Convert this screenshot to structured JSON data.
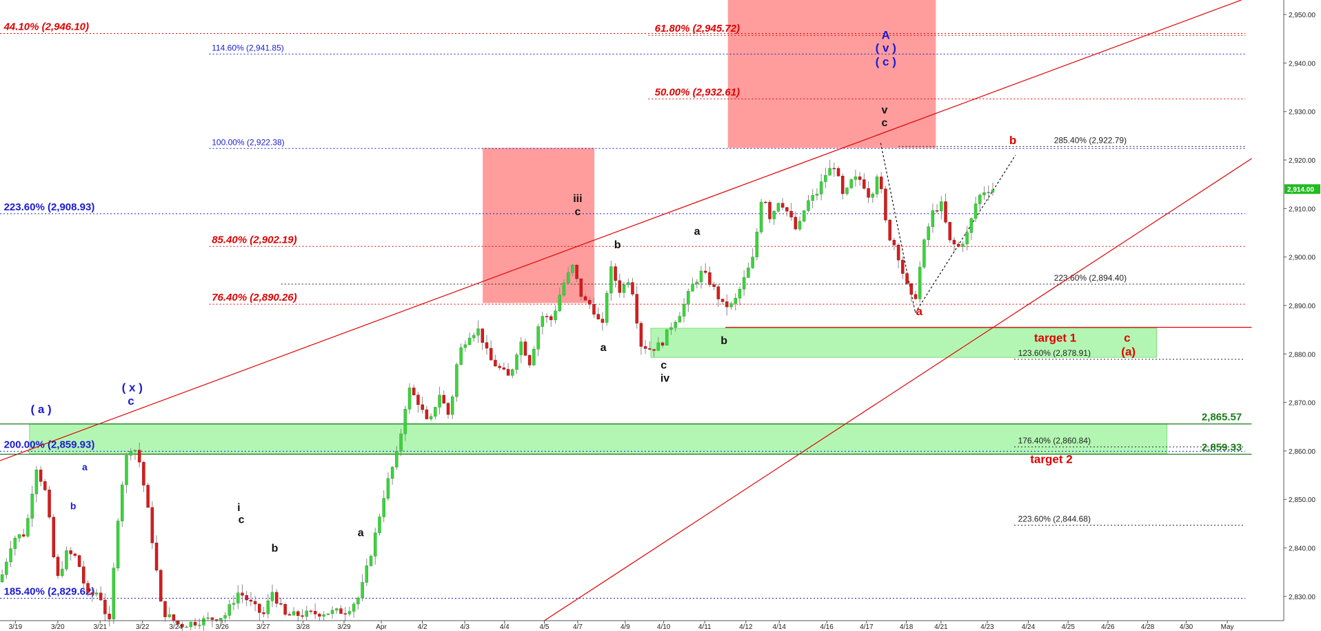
{
  "chart_data": {
    "type": "candlestick",
    "title": "",
    "xlabel": "",
    "ylabel": "",
    "ylim": [
      2825,
      2953
    ],
    "grid": false,
    "current_price_label": "2,914.00",
    "y_ticks": [
      {
        "v": 2830,
        "label": "2,830.00"
      },
      {
        "v": 2840,
        "label": "2,840.00"
      },
      {
        "v": 2850,
        "label": "2,850.00"
      },
      {
        "v": 2860,
        "label": "2,860.00"
      },
      {
        "v": 2870,
        "label": "2,870.00"
      },
      {
        "v": 2880,
        "label": "2,880.00"
      },
      {
        "v": 2890,
        "label": "2,890.00"
      },
      {
        "v": 2900,
        "label": "2,900.00"
      },
      {
        "v": 2910,
        "label": "2,910.00"
      },
      {
        "v": 2920,
        "label": "2,920.00"
      },
      {
        "v": 2930,
        "label": "2,930.00"
      },
      {
        "v": 2940,
        "label": "2,940.00"
      },
      {
        "v": 2950,
        "label": "2,950.00"
      }
    ],
    "x_ticks": [
      {
        "label": "3/19",
        "pos": 0.012
      },
      {
        "label": "3/20",
        "pos": 0.045
      },
      {
        "label": "3/21",
        "pos": 0.078
      },
      {
        "label": "3/22",
        "pos": 0.111
      },
      {
        "label": "3/24",
        "pos": 0.137
      },
      {
        "label": "3/26",
        "pos": 0.173
      },
      {
        "label": "3/27",
        "pos": 0.205
      },
      {
        "label": "3/28",
        "pos": 0.236
      },
      {
        "label": "3/29",
        "pos": 0.268
      },
      {
        "label": "Apr",
        "pos": 0.297
      },
      {
        "label": "4/2",
        "pos": 0.329
      },
      {
        "label": "4/3",
        "pos": 0.362
      },
      {
        "label": "4/4",
        "pos": 0.393
      },
      {
        "label": "4/5",
        "pos": 0.424
      },
      {
        "label": "4/7",
        "pos": 0.45
      },
      {
        "label": "4/9",
        "pos": 0.487
      },
      {
        "label": "4/10",
        "pos": 0.517
      },
      {
        "label": "4/11",
        "pos": 0.549
      },
      {
        "label": "4/12",
        "pos": 0.581
      },
      {
        "label": "4/14",
        "pos": 0.607
      },
      {
        "label": "4/16",
        "pos": 0.644
      },
      {
        "label": "4/17",
        "pos": 0.675
      },
      {
        "label": "4/18",
        "pos": 0.706
      },
      {
        "label": "4/21",
        "pos": 0.733
      },
      {
        "label": "4/23",
        "pos": 0.769
      },
      {
        "label": "4/24",
        "pos": 0.801
      },
      {
        "label": "4/25",
        "pos": 0.832
      },
      {
        "label": "4/26",
        "pos": 0.863
      },
      {
        "label": "4/28",
        "pos": 0.894
      },
      {
        "label": "4/30",
        "pos": 0.924
      },
      {
        "label": "May",
        "pos": 0.956
      }
    ],
    "path": [
      [
        0.0,
        2833
      ],
      [
        0.01,
        2842
      ],
      [
        0.02,
        2843
      ],
      [
        0.028,
        2857
      ],
      [
        0.036,
        2851
      ],
      [
        0.044,
        2833
      ],
      [
        0.052,
        2839
      ],
      [
        0.06,
        2838
      ],
      [
        0.068,
        2830
      ],
      [
        0.077,
        2831
      ],
      [
        0.085,
        2824
      ],
      [
        0.093,
        2850
      ],
      [
        0.1,
        2861
      ],
      [
        0.107,
        2860
      ],
      [
        0.114,
        2850
      ],
      [
        0.12,
        2839
      ],
      [
        0.126,
        2827
      ],
      [
        0.14,
        2824
      ],
      [
        0.175,
        2826
      ],
      [
        0.186,
        2831
      ],
      [
        0.205,
        2826
      ],
      [
        0.212,
        2831
      ],
      [
        0.222,
        2826
      ],
      [
        0.27,
        2827
      ],
      [
        0.28,
        2830
      ],
      [
        0.29,
        2840
      ],
      [
        0.3,
        2852
      ],
      [
        0.31,
        2860
      ],
      [
        0.318,
        2873
      ],
      [
        0.326,
        2870
      ],
      [
        0.334,
        2865
      ],
      [
        0.342,
        2872
      ],
      [
        0.35,
        2867
      ],
      [
        0.357,
        2880
      ],
      [
        0.365,
        2884
      ],
      [
        0.373,
        2885
      ],
      [
        0.381,
        2879
      ],
      [
        0.389,
        2877
      ],
      [
        0.397,
        2875
      ],
      [
        0.405,
        2883
      ],
      [
        0.413,
        2878
      ],
      [
        0.421,
        2888
      ],
      [
        0.43,
        2887
      ],
      [
        0.438,
        2894
      ],
      [
        0.446,
        2898
      ],
      [
        0.454,
        2891
      ],
      [
        0.461,
        2890
      ],
      [
        0.469,
        2885
      ],
      [
        0.475,
        2898
      ],
      [
        0.483,
        2893
      ],
      [
        0.491,
        2896
      ],
      [
        0.499,
        2882
      ],
      [
        0.507,
        2881
      ],
      [
        0.515,
        2882
      ],
      [
        0.523,
        2886
      ],
      [
        0.531,
        2889
      ],
      [
        0.539,
        2894
      ],
      [
        0.547,
        2897
      ],
      [
        0.555,
        2894
      ],
      [
        0.563,
        2890
      ],
      [
        0.571,
        2890
      ],
      [
        0.579,
        2895
      ],
      [
        0.587,
        2900
      ],
      [
        0.594,
        2914
      ],
      [
        0.6,
        2908
      ],
      [
        0.607,
        2912
      ],
      [
        0.614,
        2909
      ],
      [
        0.621,
        2905
      ],
      [
        0.628,
        2911
      ],
      [
        0.636,
        2913
      ],
      [
        0.643,
        2917
      ],
      [
        0.65,
        2919
      ],
      [
        0.657,
        2912
      ],
      [
        0.664,
        2916
      ],
      [
        0.671,
        2916
      ],
      [
        0.678,
        2912
      ],
      [
        0.684,
        2918
      ],
      [
        0.691,
        2905
      ],
      [
        0.698,
        2902
      ],
      [
        0.705,
        2895
      ],
      [
        0.712,
        2890
      ],
      [
        0.719,
        2902
      ],
      [
        0.726,
        2909
      ],
      [
        0.733,
        2911
      ],
      [
        0.74,
        2903
      ],
      [
        0.747,
        2902
      ],
      [
        0.754,
        2905
      ],
      [
        0.761,
        2912
      ],
      [
        0.768,
        2914
      ],
      [
        0.775,
        2914
      ]
    ],
    "fib_levels": [
      {
        "pct": "44.10%",
        "value": 2946.1,
        "label": "44.10% (2,946.10)",
        "color": "#e00000",
        "style": "big",
        "x1": 0.0,
        "x2": 0.97,
        "lx": 0.003
      },
      {
        "pct": "61.80%",
        "value": 2945.72,
        "label": "61.80% (2,945.72)",
        "color": "#e00000",
        "style": "big",
        "x1": 0.505,
        "x2": 0.97,
        "lx": 0.51
      },
      {
        "pct": "114.60%",
        "value": 2941.85,
        "label": "114.60% (2,941.85)",
        "color": "#1a1ad6",
        "style": "small",
        "x1": 0.163,
        "x2": 0.97,
        "lx": 0.165
      },
      {
        "pct": "50.00%",
        "value": 2932.61,
        "label": "50.00% (2,932.61)",
        "color": "#e00000",
        "style": "big",
        "x1": 0.505,
        "x2": 0.97,
        "lx": 0.51
      },
      {
        "pct": "100.00%",
        "value": 2922.38,
        "label": "100.00% (2,922.38)",
        "color": "#1a1ad6",
        "style": "small",
        "x1": 0.163,
        "x2": 0.97,
        "lx": 0.165
      },
      {
        "pct": "285.40%",
        "value": 2922.79,
        "label": "285.40% (2,922.79)",
        "color": "#222222",
        "style": "small",
        "x1": 0.7,
        "x2": 0.97,
        "lx": 0.821
      },
      {
        "pct": "223.60%",
        "value": 2908.93,
        "label": "223.60% (2,908.93)",
        "color": "#1a1ad6",
        "style": "bigplain",
        "x1": 0.0,
        "x2": 0.97,
        "lx": 0.003
      },
      {
        "pct": "85.40%",
        "value": 2902.19,
        "label": "85.40% (2,902.19)",
        "color": "#e00000",
        "style": "big",
        "x1": 0.163,
        "x2": 0.97,
        "lx": 0.165
      },
      {
        "pct": "223.60%",
        "value": 2894.4,
        "label": "223.60% (2,894.40)",
        "color": "#222222",
        "style": "small",
        "x1": 0.219,
        "x2": 0.97,
        "lx": 0.821
      },
      {
        "pct": "76.40%",
        "value": 2890.26,
        "label": "76.40% (2,890.26)",
        "color": "#e00000",
        "style": "big",
        "x1": 0.163,
        "x2": 0.97,
        "lx": 0.165
      },
      {
        "pct": "123.60%",
        "value": 2878.91,
        "label": "123.60% (2,878.91)",
        "color": "#222222",
        "style": "small",
        "x1": 0.79,
        "x2": 0.97,
        "lx": 0.793
      },
      {
        "pct": "176.40%",
        "value": 2860.84,
        "label": "176.40% (2,860.84)",
        "color": "#222222",
        "style": "small",
        "x1": 0.79,
        "x2": 0.97,
        "lx": 0.793
      },
      {
        "pct": "200.00%",
        "value": 2859.93,
        "label": "200.00% (2,859.93)",
        "color": "#1a1ad6",
        "style": "bigplain",
        "x1": 0.0,
        "x2": 0.97,
        "lx": 0.003
      },
      {
        "pct": "223.60%",
        "value": 2844.68,
        "label": "223.60% (2,844.68)",
        "color": "#222222",
        "style": "small",
        "x1": 0.79,
        "x2": 0.97,
        "lx": 0.793
      },
      {
        "pct": "185.40%",
        "value": 2829.62,
        "label": "185.40% (2,829.62)",
        "color": "#1a1ad6",
        "style": "bigplain",
        "x1": 0.0,
        "x2": 0.97,
        "lx": 0.003
      }
    ],
    "zones": [
      {
        "name": "red-zone-1",
        "color": "#ff8c8c",
        "x1": 0.567,
        "x2": 0.729,
        "y1": 2922.5,
        "y2": 2953
      },
      {
        "name": "red-zone-2",
        "color": "#ff8c8c",
        "x1": 0.376,
        "x2": 0.463,
        "y1": 2890.5,
        "y2": 2922.5
      },
      {
        "name": "green-zone-target1",
        "color": "#a6f5a6",
        "x1": 0.507,
        "x2": 0.901,
        "y1": 2879.3,
        "y2": 2885.3
      },
      {
        "name": "green-zone-target2",
        "color": "#a6f5a6",
        "x1": 0.023,
        "x2": 0.909,
        "y1": 2859.4,
        "y2": 2865.6
      }
    ],
    "trendlines": [
      {
        "color": "#e00000",
        "x1": 0.0,
        "y1": 2858.0,
        "x2": 0.967,
        "y2": 2953.0,
        "dash": false
      },
      {
        "color": "#e00000",
        "x1": 0.424,
        "y1": 2825.0,
        "x2": 0.975,
        "y2": 2920.3,
        "dash": false
      },
      {
        "color": "#e00000",
        "x1": 0.565,
        "y1": 2885.5,
        "x2": 0.975,
        "y2": 2885.5,
        "dash": false
      },
      {
        "color": "#1a7a1a",
        "x1": 0.0,
        "y1": 2865.57,
        "x2": 0.975,
        "y2": 2865.57,
        "dash": false
      },
      {
        "color": "#1a7a1a",
        "x1": 0.0,
        "y1": 2859.33,
        "x2": 0.975,
        "y2": 2859.33,
        "dash": false
      },
      {
        "color": "#111111",
        "x1": 0.686,
        "y1": 2923.5,
        "x2": 0.713,
        "y2": 2888.5,
        "dash": true
      },
      {
        "color": "#111111",
        "x1": 0.713,
        "y1": 2888.5,
        "x2": 0.791,
        "y2": 2921.0,
        "dash": true
      }
    ],
    "price_labels": [
      {
        "text": "2,865.57",
        "value": 2865.57,
        "color": "#1a7a1a",
        "lx": 0.936
      },
      {
        "text": "2,859.33",
        "value": 2859.33,
        "color": "#1a7a1a",
        "lx": 0.936
      }
    ],
    "wave_labels": [
      {
        "text": "A",
        "x": 0.69,
        "y": 2945.0,
        "color": "#1a1ad6",
        "size": 17
      },
      {
        "text": "( v )",
        "x": 0.69,
        "y": 2942.3,
        "color": "#1a1ad6",
        "size": 17
      },
      {
        "text": "( c )",
        "x": 0.69,
        "y": 2939.5,
        "color": "#1a1ad6",
        "size": 17
      },
      {
        "text": "v",
        "x": 0.689,
        "y": 2929.6,
        "color": "#111111",
        "size": 16
      },
      {
        "text": "c",
        "x": 0.689,
        "y": 2927.0,
        "color": "#111111",
        "size": 16
      },
      {
        "text": "b",
        "x": 0.789,
        "y": 2923.3,
        "color": "#e00000",
        "size": 17
      },
      {
        "text": "iii",
        "x": 0.45,
        "y": 2911.3,
        "color": "#111111",
        "size": 16
      },
      {
        "text": "c",
        "x": 0.45,
        "y": 2908.6,
        "color": "#111111",
        "size": 16
      },
      {
        "text": "b",
        "x": 0.481,
        "y": 2901.8,
        "color": "#111111",
        "size": 16
      },
      {
        "text": "a",
        "x": 0.543,
        "y": 2904.6,
        "color": "#111111",
        "size": 16
      },
      {
        "text": "a",
        "x": 0.47,
        "y": 2880.6,
        "color": "#111111",
        "size": 16
      },
      {
        "text": "b",
        "x": 0.564,
        "y": 2882.0,
        "color": "#111111",
        "size": 16
      },
      {
        "text": "c",
        "x": 0.517,
        "y": 2877.0,
        "color": "#111111",
        "size": 16
      },
      {
        "text": "iv",
        "x": 0.518,
        "y": 2874.3,
        "color": "#111111",
        "size": 16
      },
      {
        "text": "a",
        "x": 0.716,
        "y": 2888.0,
        "color": "#e00000",
        "size": 17
      },
      {
        "text": "target 1",
        "x": 0.822,
        "y": 2882.5,
        "color": "#e00000",
        "size": 17
      },
      {
        "text": "c",
        "x": 0.878,
        "y": 2882.5,
        "color": "#e00000",
        "size": 17
      },
      {
        "text": "(a)",
        "x": 0.879,
        "y": 2879.7,
        "color": "#e00000",
        "size": 17
      },
      {
        "text": "target 2",
        "x": 0.819,
        "y": 2857.5,
        "color": "#e00000",
        "size": 17
      },
      {
        "text": "( a )",
        "x": 0.032,
        "y": 2867.8,
        "color": "#1a1ad6",
        "size": 17
      },
      {
        "text": "( x )",
        "x": 0.103,
        "y": 2872.3,
        "color": "#1a1ad6",
        "size": 17
      },
      {
        "text": "c",
        "x": 0.102,
        "y": 2869.5,
        "color": "#1a1ad6",
        "size": 17
      },
      {
        "text": "a",
        "x": 0.066,
        "y": 2856.0,
        "color": "#1a1ad6",
        "size": 14
      },
      {
        "text": "b",
        "x": 0.057,
        "y": 2848.0,
        "color": "#1a1ad6",
        "size": 14
      },
      {
        "text": "i",
        "x": 0.186,
        "y": 2847.6,
        "color": "#111111",
        "size": 16
      },
      {
        "text": "c",
        "x": 0.188,
        "y": 2845.1,
        "color": "#111111",
        "size": 16
      },
      {
        "text": "b",
        "x": 0.214,
        "y": 2839.2,
        "color": "#111111",
        "size": 16
      },
      {
        "text": "a",
        "x": 0.281,
        "y": 2842.4,
        "color": "#111111",
        "size": 16
      }
    ]
  }
}
